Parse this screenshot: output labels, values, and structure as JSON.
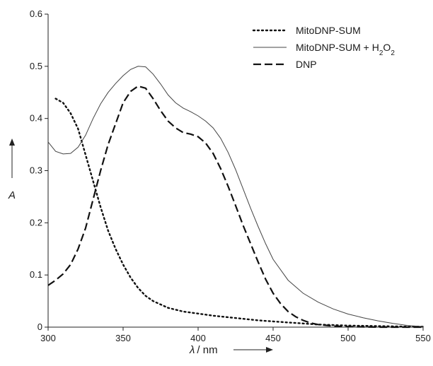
{
  "chart_data": {
    "type": "line",
    "xlabel_symbol": "λ",
    "xlabel_unit": "/ nm",
    "ylabel": "A",
    "xlim": [
      300,
      550
    ],
    "ylim": [
      0,
      0.6
    ],
    "xticks": [
      300,
      350,
      400,
      450,
      500,
      550
    ],
    "yticks": [
      0,
      0.1,
      0.2,
      0.3,
      0.4,
      0.5,
      0.6
    ],
    "x_tick_labels": [
      "300",
      "350",
      "400",
      "450",
      "500",
      "550"
    ],
    "y_tick_labels": [
      "0",
      "0.1",
      "0.2",
      "0.3",
      "0.4",
      "0.5",
      "0.6"
    ],
    "grid": false,
    "legend_position": "top-right",
    "series": [
      {
        "name": "MitoDNP-SUM",
        "style": "dotted",
        "x": [
          305,
          310,
          315,
          320,
          325,
          330,
          335,
          340,
          345,
          350,
          355,
          360,
          365,
          370,
          380,
          390,
          400,
          410,
          420,
          430,
          440,
          450,
          460,
          470,
          480,
          500,
          520,
          540,
          550
        ],
        "y": [
          0.438,
          0.43,
          0.41,
          0.38,
          0.33,
          0.28,
          0.23,
          0.185,
          0.15,
          0.12,
          0.095,
          0.075,
          0.06,
          0.05,
          0.037,
          0.03,
          0.026,
          0.022,
          0.019,
          0.016,
          0.013,
          0.011,
          0.009,
          0.007,
          0.005,
          0.003,
          0.002,
          0.001,
          0.001
        ]
      },
      {
        "name": "MitoDNP-SUM + H2O2",
        "name_parts": [
          "MitoDNP-SUM + H",
          "2",
          "O",
          "2"
        ],
        "style": "solid",
        "x": [
          300,
          305,
          310,
          315,
          320,
          325,
          330,
          335,
          340,
          345,
          350,
          355,
          360,
          365,
          370,
          375,
          380,
          385,
          390,
          395,
          400,
          405,
          410,
          415,
          420,
          425,
          430,
          435,
          440,
          445,
          450,
          460,
          470,
          480,
          490,
          500,
          510,
          520,
          530,
          540,
          550
        ],
        "y": [
          0.355,
          0.337,
          0.332,
          0.333,
          0.345,
          0.368,
          0.4,
          0.428,
          0.45,
          0.467,
          0.482,
          0.494,
          0.5,
          0.499,
          0.485,
          0.466,
          0.445,
          0.43,
          0.42,
          0.413,
          0.405,
          0.395,
          0.382,
          0.362,
          0.335,
          0.302,
          0.265,
          0.228,
          0.193,
          0.16,
          0.13,
          0.09,
          0.065,
          0.048,
          0.035,
          0.025,
          0.018,
          0.012,
          0.007,
          0.003,
          0.001
        ]
      },
      {
        "name": "DNP",
        "style": "dashed",
        "x": [
          300,
          305,
          310,
          315,
          320,
          325,
          330,
          335,
          340,
          345,
          350,
          355,
          360,
          365,
          370,
          375,
          380,
          385,
          390,
          395,
          400,
          405,
          410,
          415,
          420,
          425,
          430,
          435,
          440,
          445,
          450,
          455,
          460,
          465,
          470,
          475,
          480,
          490,
          500,
          520,
          550
        ],
        "y": [
          0.08,
          0.09,
          0.102,
          0.12,
          0.15,
          0.19,
          0.245,
          0.3,
          0.35,
          0.39,
          0.43,
          0.452,
          0.462,
          0.458,
          0.438,
          0.415,
          0.395,
          0.382,
          0.373,
          0.37,
          0.365,
          0.353,
          0.333,
          0.304,
          0.27,
          0.233,
          0.195,
          0.16,
          0.125,
          0.092,
          0.065,
          0.045,
          0.03,
          0.02,
          0.013,
          0.008,
          0.005,
          0.002,
          0.001,
          0.0,
          0.0
        ]
      }
    ]
  }
}
